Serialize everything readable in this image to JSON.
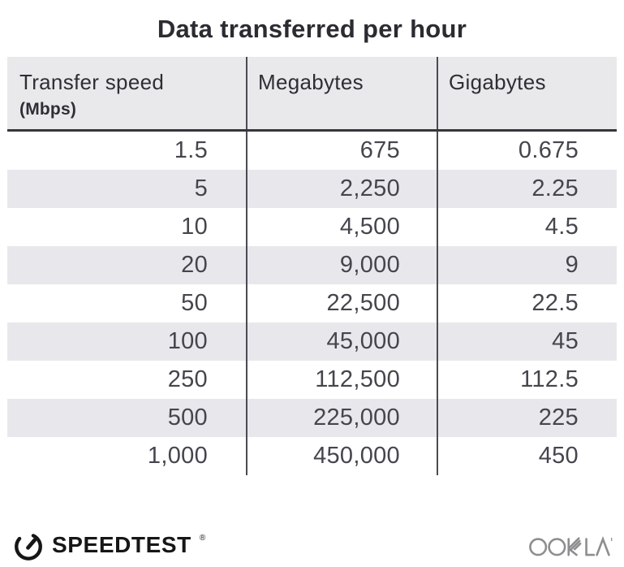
{
  "title": "Data transferred per hour",
  "table": {
    "columns": [
      {
        "label": "Transfer speed",
        "sublabel": "(Mbps)"
      },
      {
        "label": "Megabytes"
      },
      {
        "label": "Gigabytes"
      }
    ],
    "rows": [
      [
        "1.5",
        "675",
        "0.675"
      ],
      [
        "5",
        "2,250",
        "2.25"
      ],
      [
        "10",
        "4,500",
        "4.5"
      ],
      [
        "20",
        "9,000",
        "9"
      ],
      [
        "50",
        "22,500",
        "22.5"
      ],
      [
        "100",
        "45,000",
        "45"
      ],
      [
        "250",
        "112,500",
        "112.5"
      ],
      [
        "500",
        "225,000",
        "225"
      ],
      [
        "1,000",
        "450,000",
        "450"
      ]
    ]
  },
  "footer": {
    "brand": "SPEEDTEST",
    "brand_mark": "®",
    "attribution": "OOKLA"
  },
  "colors": {
    "header_bg": "#e9e9ec",
    "stripe_bg": "#e8e8ec",
    "divider": "#4b4b52",
    "header_border": "#36363c",
    "body_text": "#45454d",
    "title_text": "#2b2b32",
    "brand_black": "#161616",
    "ookla_gray": "#8e8e90"
  },
  "chart_data": {
    "type": "table",
    "title": "Data transferred per hour",
    "columns": [
      "Transfer speed (Mbps)",
      "Megabytes",
      "Gigabytes"
    ],
    "rows": [
      [
        1.5,
        675,
        0.675
      ],
      [
        5,
        2250,
        2.25
      ],
      [
        10,
        4500,
        4.5
      ],
      [
        20,
        9000,
        9
      ],
      [
        50,
        22500,
        22.5
      ],
      [
        100,
        45000,
        45
      ],
      [
        250,
        112500,
        112.5
      ],
      [
        500,
        225000,
        225
      ],
      [
        1000,
        450000,
        450
      ]
    ]
  }
}
